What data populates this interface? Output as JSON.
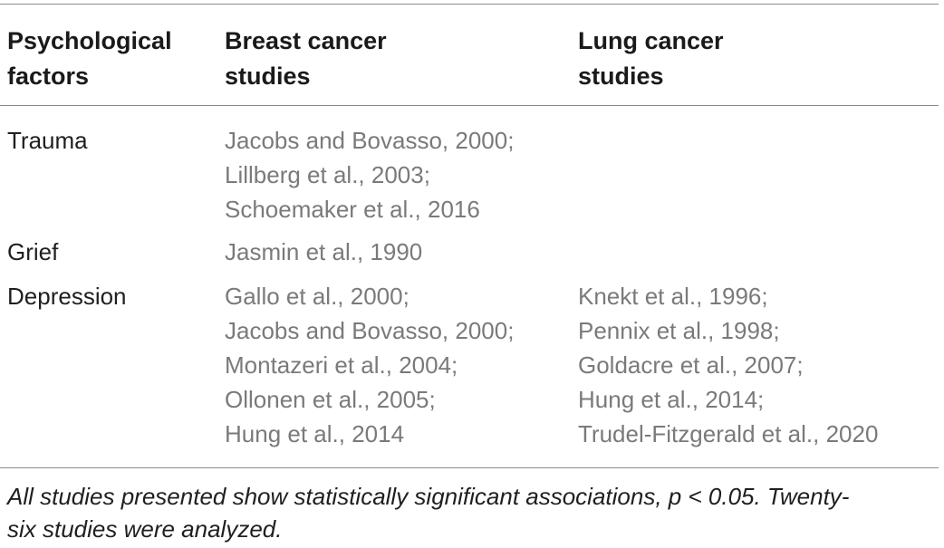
{
  "table": {
    "headers": {
      "factor": [
        "Psychological",
        "factors"
      ],
      "breast": [
        "Breast cancer",
        "studies"
      ],
      "lung": [
        "Lung cancer",
        "studies"
      ]
    },
    "rows": [
      {
        "factor": "Trauma",
        "breast": [
          "Jacobs and Bovasso, 2000;",
          "Lillberg et al., 2003;",
          "Schoemaker et al., 2016"
        ],
        "lung": []
      },
      {
        "factor": "Grief",
        "breast": [
          "Jasmin et al., 1990"
        ],
        "lung": []
      },
      {
        "factor": "Depression",
        "breast": [
          "Gallo et al., 2000;",
          "Jacobs and Bovasso, 2000;",
          "Montazeri et al., 2004;",
          "Ollonen et al., 2005;",
          "Hung et al., 2014"
        ],
        "lung": [
          "Knekt et al., 1996;",
          "Pennix et al., 1998;",
          "Goldacre et al., 2007;",
          "Hung et al., 2014;",
          "Trudel-Fitzgerald et al., 2020"
        ]
      }
    ]
  },
  "footnote": {
    "line1": "All studies presented show statistically significant associations, p < 0.05. Twenty-",
    "line2": "six studies were analyzed."
  },
  "colors": {
    "text_primary": "#1f1f1f",
    "text_citation": "#7a7a7a",
    "rule": "#8a8a8a"
  }
}
